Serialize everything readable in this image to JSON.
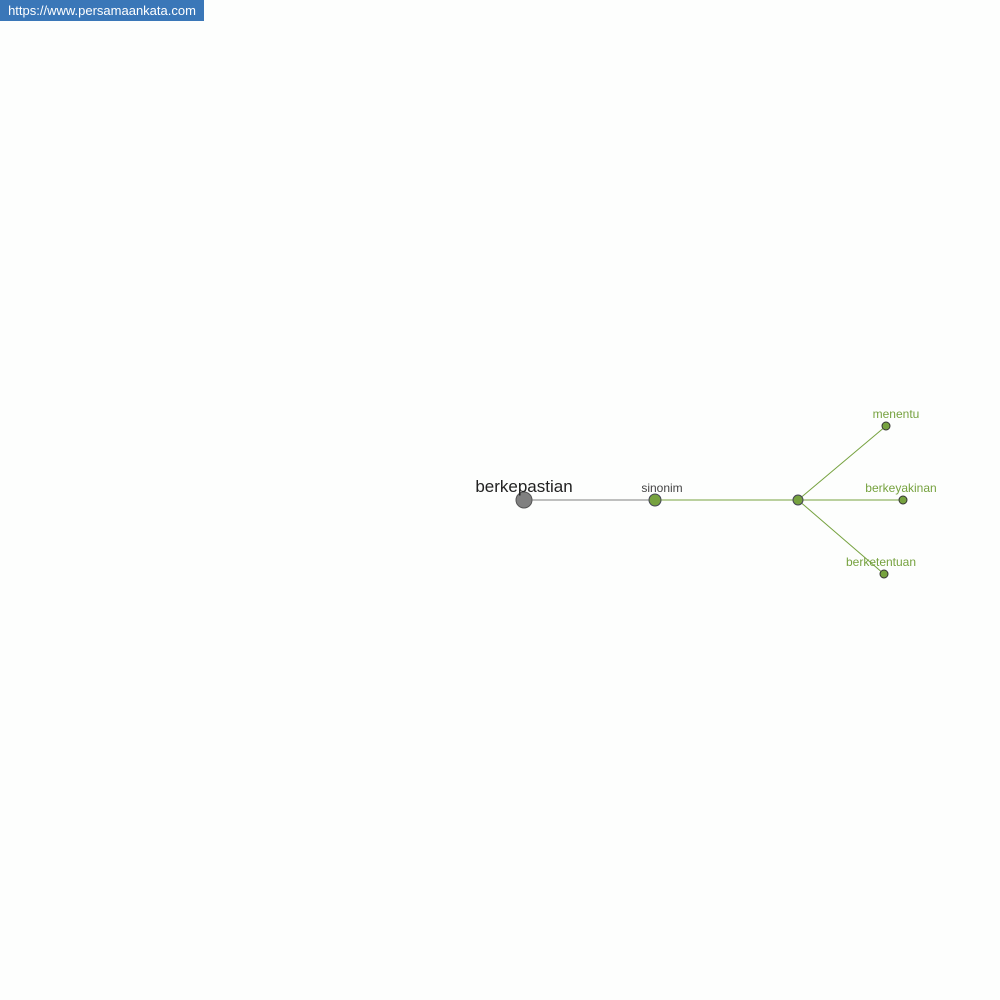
{
  "watermark": {
    "url": "https://www.persamaankata.com"
  },
  "graph": {
    "root": {
      "label": "berkepastian",
      "color": "#808080"
    },
    "relation": {
      "label": "sinonim",
      "color": "#76a23f"
    },
    "synonyms": [
      {
        "label": "menentu"
      },
      {
        "label": "berkeyakinan"
      },
      {
        "label": "berketentuan"
      }
    ],
    "colors": {
      "accent": "#76a23f",
      "root_edge": "#808080",
      "text_dark": "#222222",
      "text_mid": "#444444"
    }
  }
}
